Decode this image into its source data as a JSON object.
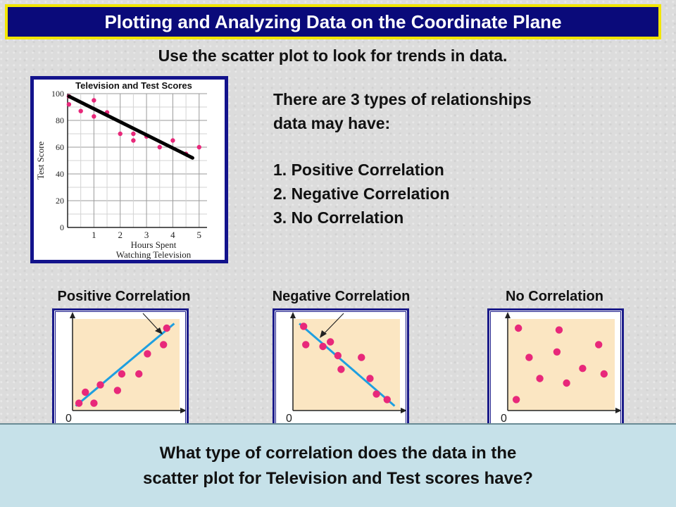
{
  "title": "Plotting and Analyzing Data on the Coordinate Plane",
  "subtitle": "Use the scatter plot to look for trends in data.",
  "info": {
    "line1": "There are 3 types of relationships",
    "line2": "data may have:",
    "items": [
      "1.  Positive Correlation",
      "2.  Negative Correlation",
      "3.  No Correlation"
    ]
  },
  "question": {
    "line1": "What type of correlation does the data in the",
    "line2": "scatter plot for Television and Test scores have?"
  },
  "colors": {
    "title_bg": "#0a0a7a",
    "title_border": "#f2e600",
    "dot": "#e8287a",
    "trend": "#1e9fe0",
    "mini_bg": "#fbe6c2",
    "question_bg": "#c6e1e9"
  },
  "chart_data": [
    {
      "type": "scatter",
      "title": "Television and Test Scores",
      "xlabel": "Hours Spent Watching Television",
      "ylabel": "Test Score",
      "xlim": [
        0,
        5.3
      ],
      "ylim": [
        0,
        100
      ],
      "xticks": [
        "1",
        "2",
        "3",
        "4",
        "5"
      ],
      "yticks": [
        "0",
        "20",
        "40",
        "60",
        "80",
        "100"
      ],
      "points": [
        {
          "x": 0.05,
          "y": 98
        },
        {
          "x": 0.05,
          "y": 92
        },
        {
          "x": 0.5,
          "y": 87
        },
        {
          "x": 1.0,
          "y": 95
        },
        {
          "x": 1.0,
          "y": 83
        },
        {
          "x": 1.5,
          "y": 86
        },
        {
          "x": 2.0,
          "y": 70
        },
        {
          "x": 2.5,
          "y": 70
        },
        {
          "x": 2.5,
          "y": 65
        },
        {
          "x": 3.0,
          "y": 68
        },
        {
          "x": 3.5,
          "y": 60
        },
        {
          "x": 4.0,
          "y": 65
        },
        {
          "x": 4.5,
          "y": 55
        },
        {
          "x": 5.0,
          "y": 60
        }
      ],
      "trendline": [
        [
          0.05,
          98
        ],
        [
          4.75,
          52
        ]
      ],
      "grid": true
    },
    {
      "type": "scatter",
      "title": "Positive Correlation",
      "origin_label": "0",
      "points": [
        [
          0.06,
          0.08
        ],
        [
          0.12,
          0.2
        ],
        [
          0.2,
          0.08
        ],
        [
          0.26,
          0.28
        ],
        [
          0.42,
          0.22
        ],
        [
          0.46,
          0.4
        ],
        [
          0.62,
          0.4
        ],
        [
          0.7,
          0.62
        ],
        [
          0.85,
          0.72
        ],
        [
          0.88,
          0.9
        ]
      ],
      "trendline": [
        [
          0.03,
          0.05
        ],
        [
          0.95,
          0.95
        ]
      ]
    },
    {
      "type": "scatter",
      "title": "Negative Correlation",
      "origin_label": "0",
      "points": [
        [
          0.1,
          0.92
        ],
        [
          0.12,
          0.72
        ],
        [
          0.28,
          0.7
        ],
        [
          0.35,
          0.75
        ],
        [
          0.42,
          0.6
        ],
        [
          0.45,
          0.45
        ],
        [
          0.64,
          0.58
        ],
        [
          0.72,
          0.35
        ],
        [
          0.78,
          0.18
        ],
        [
          0.88,
          0.12
        ]
      ],
      "trendline": [
        [
          0.06,
          0.95
        ],
        [
          0.95,
          0.05
        ]
      ]
    },
    {
      "type": "scatter",
      "title": "No Correlation",
      "origin_label": "0",
      "points": [
        [
          0.1,
          0.9
        ],
        [
          0.48,
          0.88
        ],
        [
          0.2,
          0.58
        ],
        [
          0.46,
          0.64
        ],
        [
          0.3,
          0.35
        ],
        [
          0.55,
          0.3
        ],
        [
          0.7,
          0.46
        ],
        [
          0.9,
          0.4
        ],
        [
          0.85,
          0.72
        ],
        [
          0.08,
          0.12
        ]
      ]
    }
  ]
}
